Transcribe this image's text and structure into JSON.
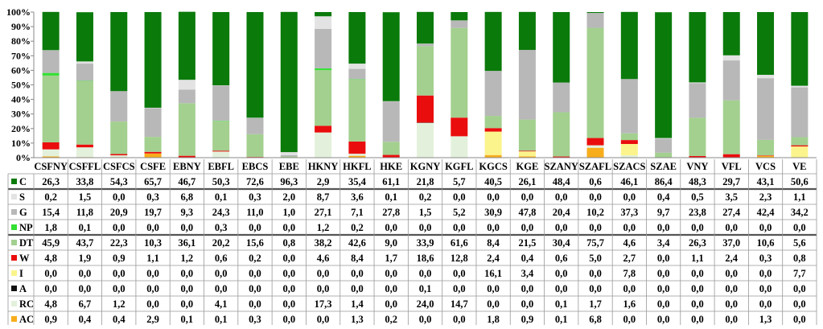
{
  "chart_data": {
    "type": "bar",
    "stacked": true,
    "ylim": [
      0,
      100
    ],
    "y_ticks": [
      "0%",
      "10%",
      "20%",
      "30%",
      "40%",
      "50%",
      "60%",
      "70%",
      "80%",
      "90%",
      "100%"
    ],
    "grid": false,
    "legend": "data-table-left",
    "categories": [
      "CSFNY",
      "CSFFL",
      "CSFCS",
      "CSFE",
      "EBNY",
      "EBFL",
      "EBCS",
      "EBE",
      "HKNY",
      "HKFL",
      "HKE",
      "KGNY",
      "KGFL",
      "KGCS",
      "KGE",
      "SZANY",
      "SZAFL",
      "SZACS",
      "SZAE",
      "VNY",
      "VFL",
      "VCS",
      "VE"
    ],
    "series": [
      {
        "name": "C",
        "color": "#0a7a0a",
        "values": [
          "26,3",
          "33,8",
          "54,3",
          "65,7",
          "46,7",
          "50,3",
          "72,6",
          "96,3",
          "2,9",
          "35,4",
          "61,1",
          "21,8",
          "5,7",
          "40,5",
          "26,1",
          "48,4",
          "0,6",
          "46,1",
          "86,4",
          "48,3",
          "29,7",
          "43,1",
          "50,6"
        ]
      },
      {
        "name": "S",
        "color": "#e3e3e3",
        "values": [
          "0,2",
          "1,5",
          "0,0",
          "0,3",
          "6,8",
          "0,1",
          "0,3",
          "2,0",
          "8,7",
          "3,6",
          "0,1",
          "0,2",
          "0,0",
          "0,0",
          "0,0",
          "0,0",
          "0,0",
          "0,0",
          "0,4",
          "0,5",
          "3,5",
          "2,3",
          "1,1"
        ]
      },
      {
        "name": "G",
        "color": "#b8b8b8",
        "values": [
          "15,4",
          "11,8",
          "20,9",
          "19,7",
          "9,3",
          "24,3",
          "11,0",
          "1,0",
          "27,1",
          "7,1",
          "27,8",
          "1,5",
          "5,2",
          "30,9",
          "47,8",
          "20,4",
          "10,2",
          "37,3",
          "9,7",
          "23,8",
          "27,4",
          "42,4",
          "34,2"
        ]
      },
      {
        "name": "NP",
        "color": "#33e033",
        "values": [
          "1,8",
          "0,1",
          "0,0",
          "0,0",
          "0,0",
          "0,3",
          "0,0",
          "0,0",
          "1,2",
          "0,2",
          "0,0",
          "0,0",
          "0,0",
          "0,0",
          "0,0",
          "0,0",
          "0,0",
          "0,0",
          "0,0",
          "0,0",
          "0,0",
          "0,0",
          "0,0"
        ]
      },
      {
        "name": "DT",
        "color": "#a3d08f",
        "values": [
          "45,9",
          "43,7",
          "22,3",
          "10,3",
          "36,1",
          "20,2",
          "15,6",
          "0,8",
          "38,2",
          "42,6",
          "9,0",
          "33,9",
          "61,6",
          "8,4",
          "21,5",
          "30,4",
          "75,7",
          "4,6",
          "3,4",
          "26,3",
          "37,0",
          "10,6",
          "5,6"
        ]
      },
      {
        "name": "W",
        "color": "#ea0d0d",
        "values": [
          "4,8",
          "1,9",
          "0,9",
          "1,1",
          "1,2",
          "0,6",
          "0,2",
          "0,0",
          "4,6",
          "8,4",
          "1,7",
          "18,6",
          "12,8",
          "2,4",
          "0,4",
          "0,6",
          "5,0",
          "2,7",
          "0,0",
          "1,1",
          "2,4",
          "0,3",
          "0,8"
        ]
      },
      {
        "name": "I",
        "color": "#fbf48c",
        "values": [
          "0,0",
          "0,0",
          "0,0",
          "0,0",
          "0,0",
          "0,0",
          "0,0",
          "0,0",
          "0,0",
          "0,0",
          "0,0",
          "0,0",
          "0,0",
          "16,1",
          "3,4",
          "0,0",
          "0,0",
          "7,8",
          "0,0",
          "0,0",
          "0,0",
          "0,0",
          "7,7"
        ]
      },
      {
        "name": "A",
        "color": "#111111",
        "values": [
          "0,0",
          "0,0",
          "0,0",
          "0,0",
          "0,0",
          "0,0",
          "0,0",
          "0,0",
          "0,0",
          "0,0",
          "0,0",
          "0,1",
          "0,0",
          "0,0",
          "0,0",
          "0,0",
          "0,0",
          "0,0",
          "0,0",
          "0,0",
          "0,0",
          "0,0",
          "0,0"
        ]
      },
      {
        "name": "RC",
        "color": "#e3f1dc",
        "values": [
          "4,8",
          "6,7",
          "1,2",
          "0,0",
          "0,0",
          "4,1",
          "0,0",
          "0,0",
          "17,3",
          "1,4",
          "0,0",
          "24,0",
          "14,7",
          "0,0",
          "0,0",
          "0,1",
          "1,7",
          "1,6",
          "0,0",
          "0,0",
          "0,0",
          "0,0",
          "0,0"
        ]
      },
      {
        "name": "AC",
        "color": "#f7ad1c",
        "values": [
          "0,9",
          "0,4",
          "0,4",
          "2,9",
          "0,1",
          "0,1",
          "0,3",
          "0,0",
          "0,0",
          "1,3",
          "0,2",
          "0,0",
          "0,0",
          "1,8",
          "0,9",
          "0,1",
          "6,8",
          "0,0",
          "0,0",
          "0,0",
          "0,0",
          "1,3",
          "0,0"
        ]
      }
    ]
  }
}
